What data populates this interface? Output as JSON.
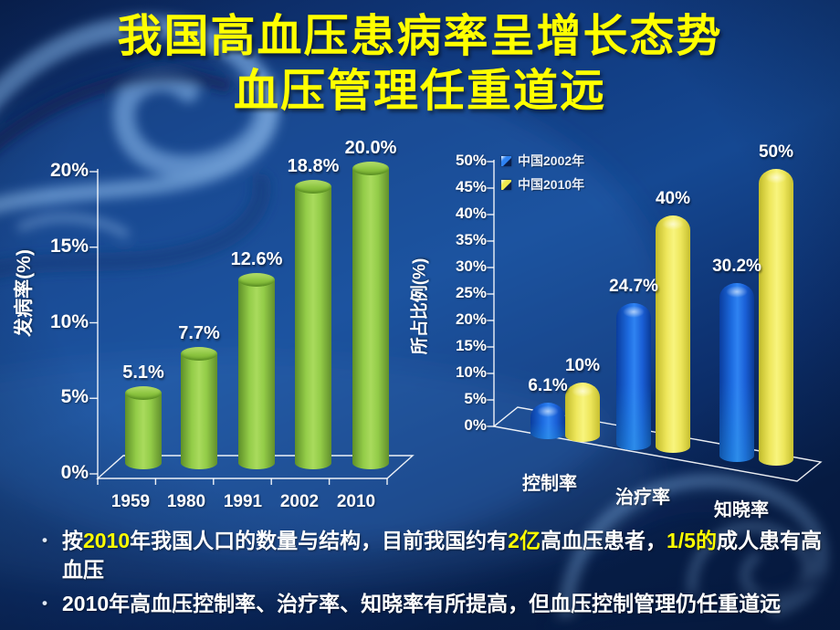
{
  "slide": {
    "title_line1": "我国高血压患病率呈增长态势",
    "title_line2": "血压管理任重道远"
  },
  "chart_data": [
    {
      "type": "bar",
      "title": "",
      "xlabel": "",
      "ylabel": "发病率(%)",
      "categories": [
        "1959",
        "1980",
        "1991",
        "2002",
        "2010"
      ],
      "values": [
        5.1,
        7.7,
        12.6,
        18.8,
        20.0
      ],
      "data_labels": [
        "5.1%",
        "7.7%",
        "12.6%",
        "18.8%",
        "20.0%"
      ],
      "ylim": [
        0,
        20
      ],
      "yticks": [
        "20%",
        "15%",
        "10%",
        "5%",
        "0%"
      ],
      "grid": false,
      "bar_style": "3d-cylinder",
      "bar_color": "#8CC63F"
    },
    {
      "type": "bar",
      "title": "",
      "xlabel": "",
      "ylabel": "所占比例(%)",
      "categories": [
        "控制率",
        "治疗率",
        "知晓率"
      ],
      "series": [
        {
          "name": "中国2002年",
          "color": "#2F83F2",
          "values": [
            6.1,
            24.7,
            30.2
          ],
          "data_labels": [
            "6.1%",
            "24.7%",
            "30.2%"
          ]
        },
        {
          "name": "中国2010年",
          "color": "#EFE94F",
          "values": [
            10,
            40,
            50
          ],
          "data_labels": [
            "10%",
            "40%",
            "50%"
          ]
        }
      ],
      "ylim": [
        0,
        50
      ],
      "yticks": [
        "50%",
        "45%",
        "40%",
        "35%",
        "30%",
        "25%",
        "20%",
        "15%",
        "10%",
        "5%",
        "0%"
      ],
      "grid": false,
      "legend_position": "top-left",
      "bar_style": "3d-cylinder"
    }
  ],
  "bullets": [
    {
      "segments": [
        {
          "text": "按"
        },
        {
          "text": "2010",
          "highlight": true
        },
        {
          "text": "年我国人口的数量与结构，目前我国约有"
        },
        {
          "text": "2亿",
          "highlight": true
        },
        {
          "text": "高血压患者，"
        },
        {
          "text": "1/5的",
          "highlight": true
        },
        {
          "text": "成人患有高血压"
        }
      ]
    },
    {
      "segments": [
        {
          "text": "2010年高血压控制率、治疗率、知晓率有所提高，但血压控制管理仍任重道远"
        }
      ]
    }
  ],
  "colors": {
    "title": "#FFFF00",
    "highlight": "#FFFF00",
    "axis": "#FFFFFF",
    "text": "#FFFFFF",
    "green_bar": "#8CC63F",
    "blue_bar": "#2F83F2",
    "yellow_bar": "#EFE94F",
    "background": "#0D2F6E"
  }
}
